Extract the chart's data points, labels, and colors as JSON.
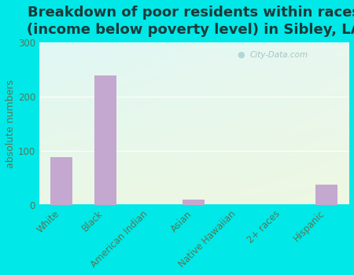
{
  "title": "Breakdown of poor residents within races\n(income below poverty level) in Sibley, LA",
  "categories": [
    "White",
    "Black",
    "American Indian",
    "Asian",
    "Native Hawaiian",
    "2+ races",
    "Hispanic"
  ],
  "values": [
    88,
    240,
    0,
    10,
    0,
    0,
    37
  ],
  "bar_color": "#c4a8d0",
  "ylabel": "absolute numbers",
  "ylim": [
    0,
    300
  ],
  "yticks": [
    0,
    100,
    200,
    300
  ],
  "title_fontsize": 13,
  "tick_fontsize": 8.5,
  "ylabel_fontsize": 9,
  "outer_bg": "#00e8e8",
  "tick_color": "#557755",
  "watermark": "City-Data.com",
  "plot_bg_topleft": "#e8fafa",
  "plot_bg_bottomright": "#e8f5e0",
  "grid_color": "#ffffff"
}
